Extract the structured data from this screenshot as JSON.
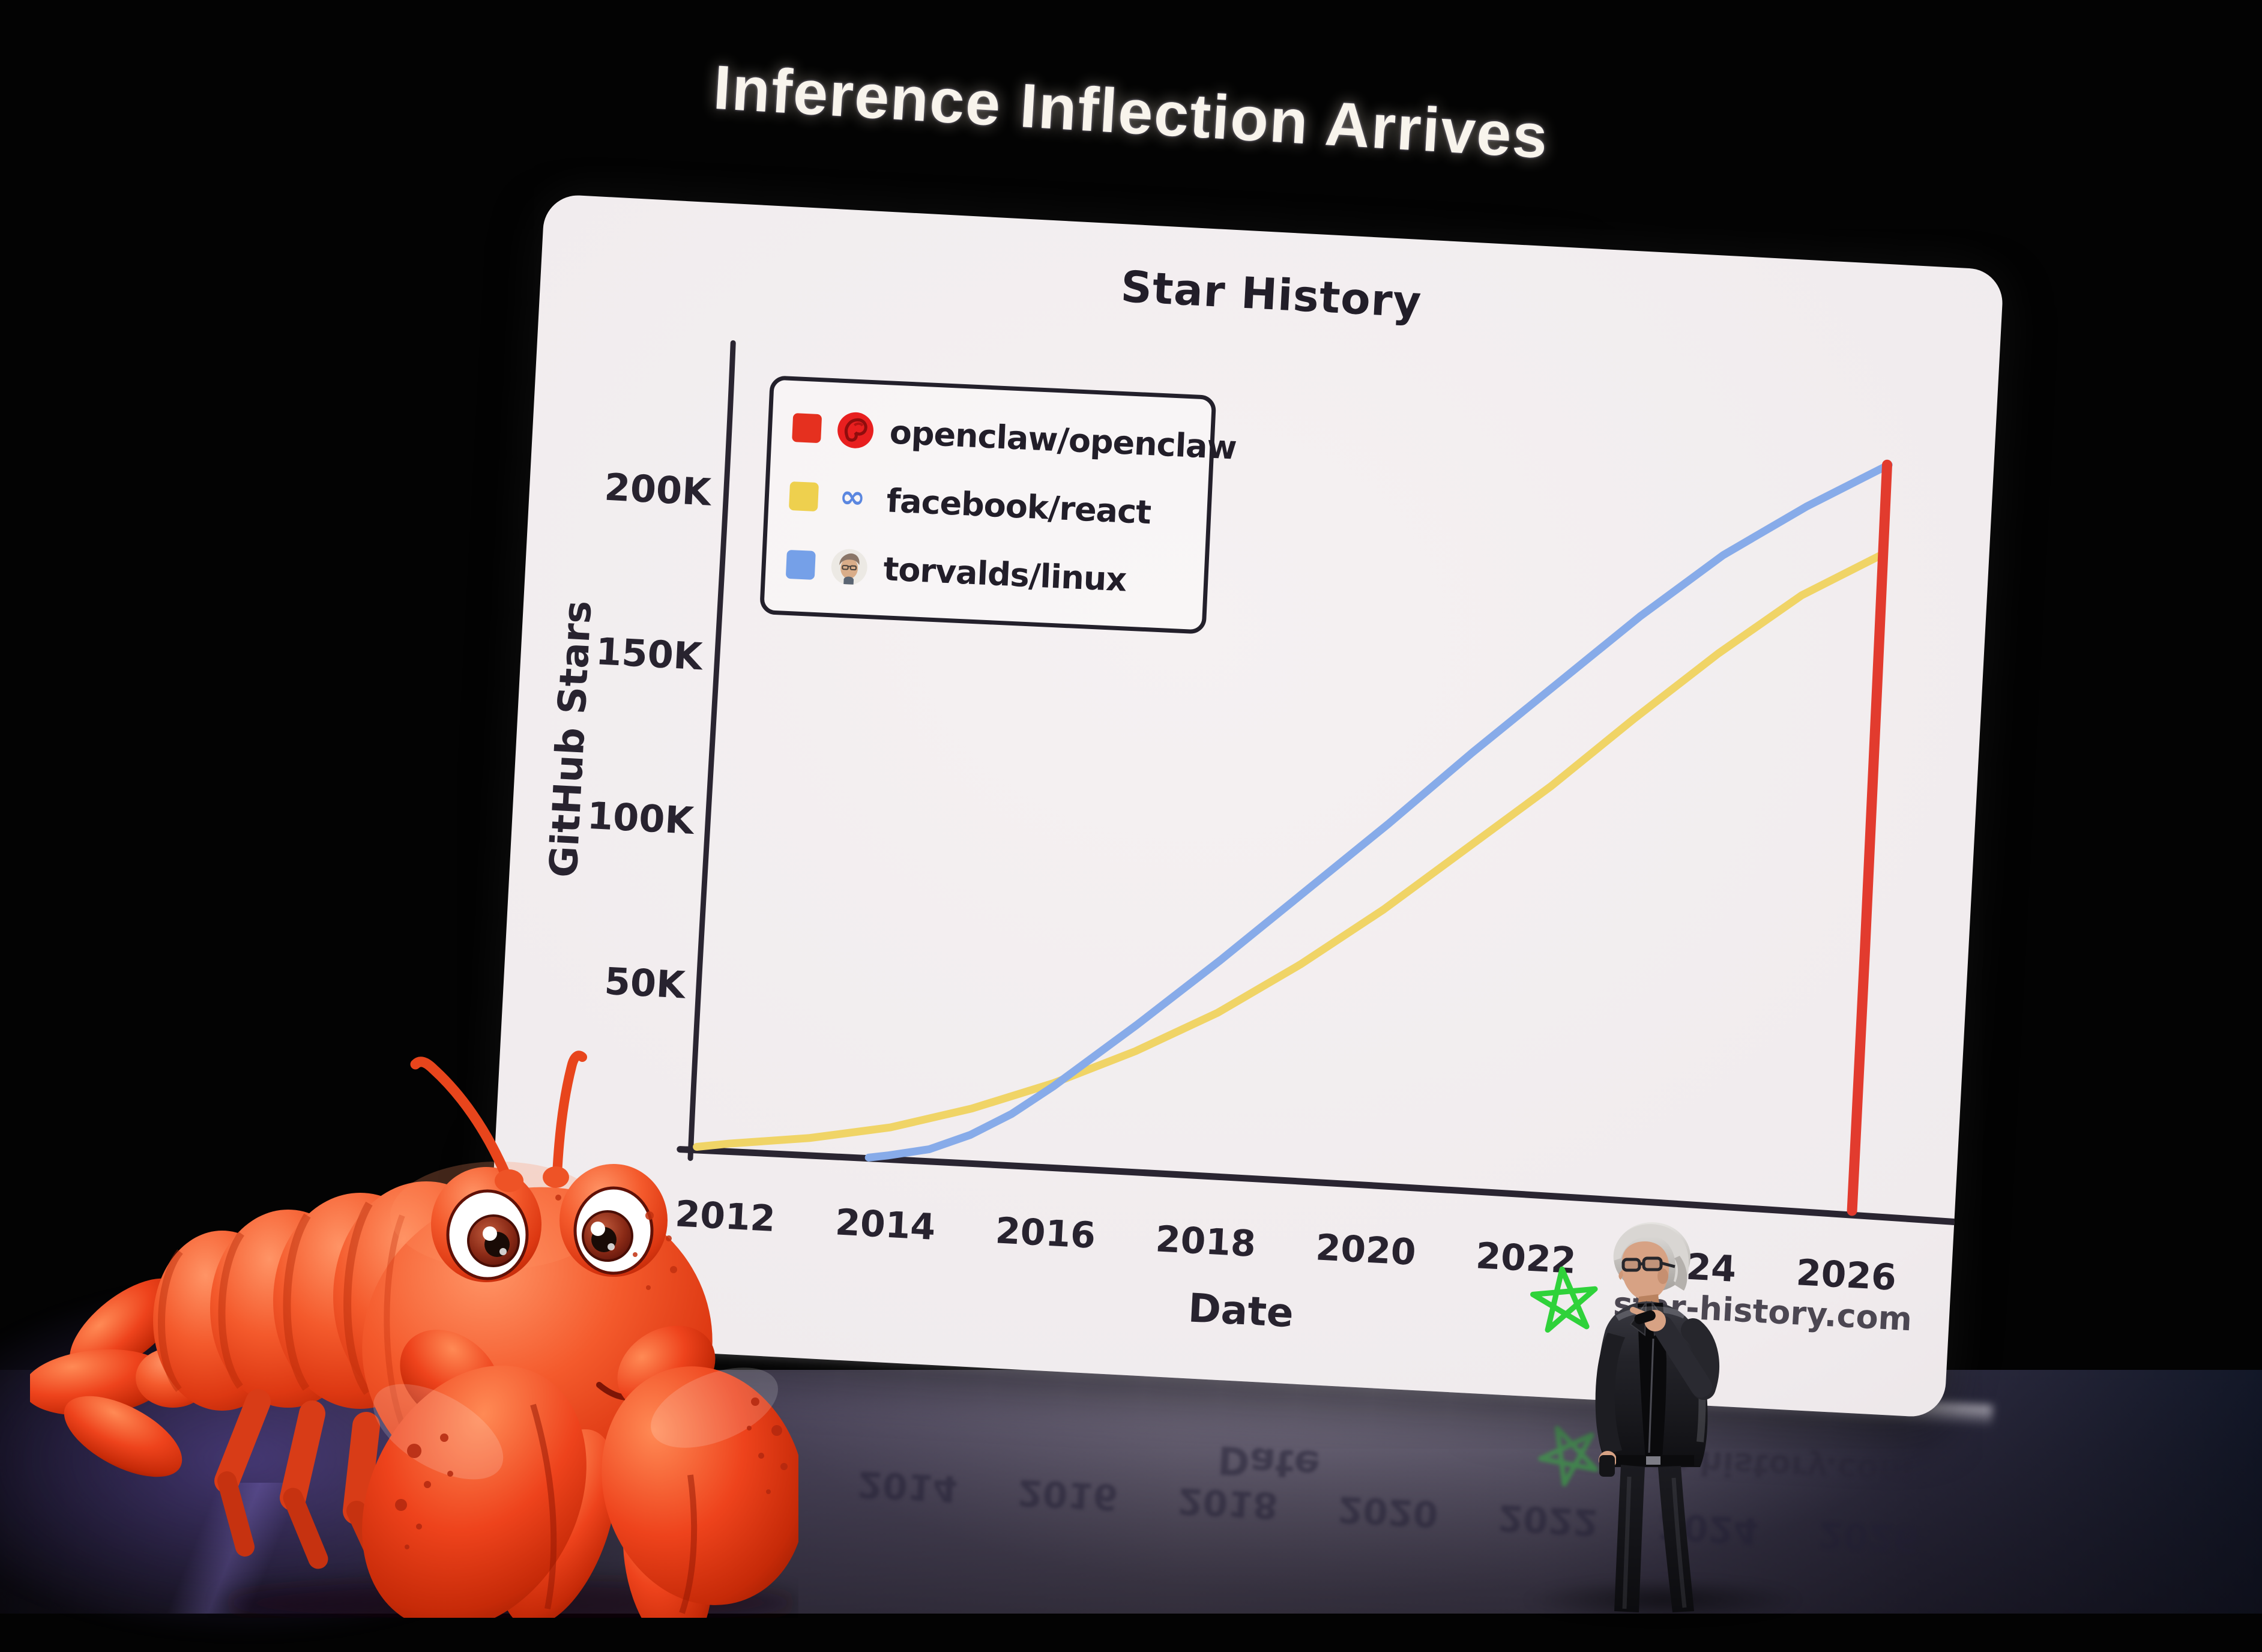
{
  "slide": {
    "title": "Inference Inflection Arrives"
  },
  "chart_data": {
    "type": "line",
    "title": "Star History",
    "xlabel": "Date",
    "ylabel": "GitHub Stars",
    "x_ticks": [
      "2012",
      "2014",
      "2016",
      "2018",
      "2020",
      "2022",
      "2024",
      "2026"
    ],
    "y_ticks": [
      {
        "label": "50K",
        "value": 50000
      },
      {
        "label": "100K",
        "value": 100000
      },
      {
        "label": "150K",
        "value": 150000
      },
      {
        "label": "200K",
        "value": 200000
      }
    ],
    "xlim": [
      2011.55,
      2027.4
    ],
    "ylim": [
      0,
      245000
    ],
    "grid": false,
    "legend_position": "top-left",
    "watermark": "star-history.com",
    "watermark_star_color": "#2fd23a",
    "series": [
      {
        "name": "openclaw/openclaw",
        "color": "#e23b2e",
        "swatch": "#e5301f",
        "icon": "openclaw-logo",
        "points": [
          [
            2026.03,
            0
          ],
          [
            2026.02,
            80000
          ],
          [
            2026.0,
            160000
          ],
          [
            2025.98,
            227000
          ]
        ]
      },
      {
        "name": "facebook/react",
        "color": "#f0d466",
        "swatch": "#eed04e",
        "icon": "meta-infinity-logo",
        "points": [
          [
            2011.6,
            1000
          ],
          [
            2012,
            2500
          ],
          [
            2013,
            5500
          ],
          [
            2014,
            10000
          ],
          [
            2015,
            17000
          ],
          [
            2016,
            26000
          ],
          [
            2017,
            37000
          ],
          [
            2018,
            50000
          ],
          [
            2019,
            66000
          ],
          [
            2020,
            84000
          ],
          [
            2021,
            104000
          ],
          [
            2022,
            124000
          ],
          [
            2023,
            146000
          ],
          [
            2024,
            167000
          ],
          [
            2025,
            186000
          ],
          [
            2026,
            200000
          ]
        ]
      },
      {
        "name": "torvalds/linux",
        "color": "#87abe9",
        "swatch": "#75a0e8",
        "icon": "torvalds-avatar",
        "points": [
          [
            2013.75,
            500
          ],
          [
            2014,
            1500
          ],
          [
            2014.5,
            4000
          ],
          [
            2015,
            9000
          ],
          [
            2015.5,
            16000
          ],
          [
            2016,
            25000
          ],
          [
            2017,
            45000
          ],
          [
            2018,
            66000
          ],
          [
            2019,
            88000
          ],
          [
            2020,
            110000
          ],
          [
            2021,
            133000
          ],
          [
            2022,
            155000
          ],
          [
            2023,
            177000
          ],
          [
            2024,
            197000
          ],
          [
            2025,
            213000
          ],
          [
            2026,
            227000
          ]
        ]
      }
    ]
  }
}
